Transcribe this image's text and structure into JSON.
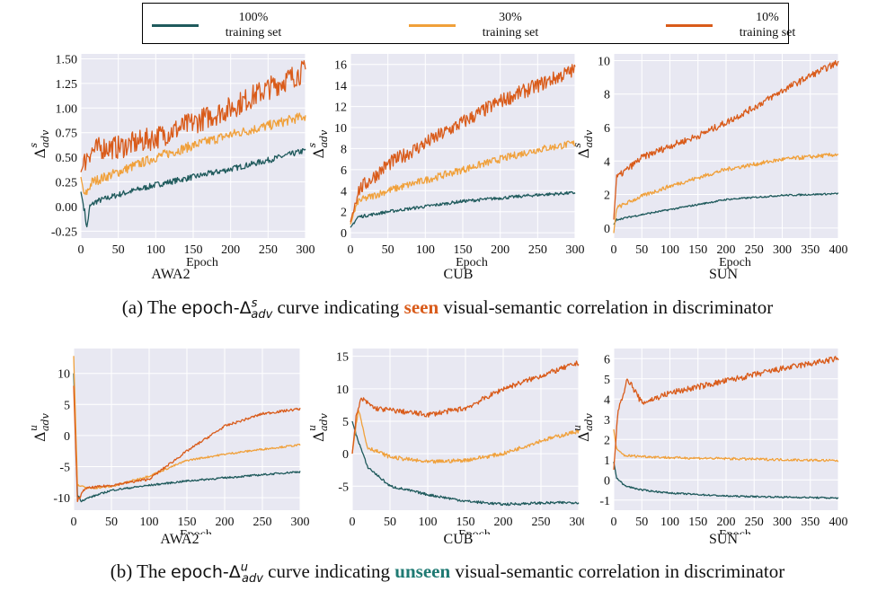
{
  "legend": {
    "items": [
      {
        "line1": "100%",
        "line2": "training set",
        "color": "#1f5a5c"
      },
      {
        "line1": "30%",
        "line2": "training set",
        "color": "#f0a03a"
      },
      {
        "line1": "10%",
        "line2": "training set",
        "color": "#d95b1a"
      }
    ]
  },
  "captions": {
    "a": {
      "prefix": "(a) The ",
      "term": "epoch-Δ",
      "sup": "s",
      "sub": "adv",
      "mid": " curve indicating ",
      "highlight": "seen",
      "suffix": " visual-semantic correlation in discriminator",
      "highlight_color": "#d95b1a"
    },
    "b": {
      "prefix": "(b) The ",
      "term": "epoch-Δ",
      "sup": "u",
      "sub": "adv",
      "mid": " curve indicating ",
      "highlight": "unseen",
      "suffix": " visual-semantic correlation in discriminator",
      "highlight_color": "#1f7a73"
    }
  },
  "chart_data": [
    {
      "type": "line",
      "id": "a1",
      "dataset": "AWA2",
      "xlabel": "Epoch",
      "ylabel_base": "Δ",
      "ylabel_sup": "s",
      "ylabel_sub": "adv",
      "xlim": [
        0,
        300
      ],
      "ylim": [
        -0.32,
        1.55
      ],
      "xticks": [
        0,
        50,
        100,
        150,
        200,
        250,
        300
      ],
      "yticks": [
        -0.25,
        0.0,
        0.25,
        0.5,
        0.75,
        1.0,
        1.25,
        1.5
      ],
      "ytick_labels": [
        "-0.25",
        "0.00",
        "0.25",
        "0.50",
        "0.75",
        "1.00",
        "1.25",
        "1.50"
      ],
      "grid": true,
      "series": [
        {
          "color": "#1f5a5c",
          "points": [
            [
              0,
              0.15
            ],
            [
              5,
              -0.05
            ],
            [
              8,
              -0.22
            ],
            [
              12,
              0.0
            ],
            [
              20,
              0.05
            ],
            [
              50,
              0.12
            ],
            [
              100,
              0.22
            ],
            [
              150,
              0.3
            ],
            [
              200,
              0.38
            ],
            [
              250,
              0.47
            ],
            [
              300,
              0.57
            ]
          ],
          "noise": 0.03
        },
        {
          "color": "#f0a03a",
          "points": [
            [
              0,
              0.3
            ],
            [
              5,
              0.1
            ],
            [
              15,
              0.25
            ],
            [
              50,
              0.35
            ],
            [
              100,
              0.5
            ],
            [
              150,
              0.62
            ],
            [
              200,
              0.73
            ],
            [
              250,
              0.82
            ],
            [
              300,
              0.92
            ]
          ],
          "noise": 0.05
        },
        {
          "color": "#d95b1a",
          "points": [
            [
              0,
              0.35
            ],
            [
              10,
              0.55
            ],
            [
              30,
              0.6
            ],
            [
              50,
              0.6
            ],
            [
              100,
              0.7
            ],
            [
              150,
              0.85
            ],
            [
              200,
              1.0
            ],
            [
              250,
              1.2
            ],
            [
              300,
              1.38
            ]
          ],
          "noise": 0.12
        }
      ]
    },
    {
      "type": "line",
      "id": "a2",
      "dataset": "CUB",
      "xlabel": "Epoch",
      "ylabel_base": "Δ",
      "ylabel_sup": "s",
      "ylabel_sub": "adv",
      "xlim": [
        0,
        300
      ],
      "ylim": [
        -0.5,
        17
      ],
      "xticks": [
        0,
        50,
        100,
        150,
        200,
        250,
        300
      ],
      "yticks": [
        0,
        2,
        4,
        6,
        8,
        10,
        12,
        14,
        16
      ],
      "ytick_labels": [
        "0",
        "2",
        "4",
        "6",
        "8",
        "10",
        "12",
        "14",
        "16"
      ],
      "grid": true,
      "series": [
        {
          "color": "#1f5a5c",
          "points": [
            [
              0,
              0.5
            ],
            [
              10,
              1.5
            ],
            [
              50,
              2.0
            ],
            [
              100,
              2.5
            ],
            [
              150,
              3.0
            ],
            [
              200,
              3.3
            ],
            [
              250,
              3.6
            ],
            [
              300,
              3.8
            ]
          ],
          "noise": 0.15
        },
        {
          "color": "#f0a03a",
          "points": [
            [
              0,
              0.8
            ],
            [
              10,
              3.0
            ],
            [
              50,
              4.0
            ],
            [
              100,
              5.0
            ],
            [
              150,
              6.0
            ],
            [
              200,
              7.0
            ],
            [
              250,
              7.9
            ],
            [
              300,
              8.5
            ]
          ],
          "noise": 0.35
        },
        {
          "color": "#d95b1a",
          "points": [
            [
              0,
              1.0
            ],
            [
              10,
              4.0
            ],
            [
              50,
              6.5
            ],
            [
              100,
              8.5
            ],
            [
              150,
              10.5
            ],
            [
              200,
              12.5
            ],
            [
              250,
              14.0
            ],
            [
              300,
              15.5
            ]
          ],
          "noise": 0.7
        }
      ]
    },
    {
      "type": "line",
      "id": "a3",
      "dataset": "SUN",
      "xlabel": "Epoch",
      "ylabel_base": "Δ",
      "ylabel_sup": "s",
      "ylabel_sub": "adv",
      "xlim": [
        0,
        400
      ],
      "ylim": [
        -0.6,
        10.4
      ],
      "xticks": [
        0,
        50,
        100,
        150,
        200,
        250,
        300,
        350,
        400
      ],
      "yticks": [
        0,
        2,
        4,
        6,
        8,
        10
      ],
      "ytick_labels": [
        "0",
        "2",
        "4",
        "6",
        "8",
        "10"
      ],
      "grid": true,
      "series": [
        {
          "color": "#1f5a5c",
          "points": [
            [
              0,
              0.2
            ],
            [
              5,
              0.5
            ],
            [
              50,
              0.8
            ],
            [
              100,
              1.1
            ],
            [
              150,
              1.4
            ],
            [
              200,
              1.7
            ],
            [
              300,
              1.95
            ],
            [
              400,
              2.05
            ]
          ],
          "noise": 0.05
        },
        {
          "color": "#f0a03a",
          "points": [
            [
              0,
              -0.3
            ],
            [
              5,
              1.2
            ],
            [
              50,
              1.9
            ],
            [
              100,
              2.5
            ],
            [
              150,
              3.0
            ],
            [
              200,
              3.5
            ],
            [
              300,
              4.1
            ],
            [
              400,
              4.4
            ]
          ],
          "noise": 0.12
        },
        {
          "color": "#d95b1a",
          "points": [
            [
              0,
              0.5
            ],
            [
              5,
              3.0
            ],
            [
              50,
              4.2
            ],
            [
              100,
              4.9
            ],
            [
              150,
              5.5
            ],
            [
              200,
              6.3
            ],
            [
              250,
              7.2
            ],
            [
              300,
              8.2
            ],
            [
              350,
              9.1
            ],
            [
              400,
              9.9
            ]
          ],
          "noise": 0.2
        }
      ]
    },
    {
      "type": "line",
      "id": "b1",
      "dataset": "AWA2",
      "xlabel": "Epoch",
      "ylabel_base": "Δ",
      "ylabel_sup": "u",
      "ylabel_sub": "adv",
      "xlim": [
        0,
        300
      ],
      "ylim": [
        -12,
        14
      ],
      "xticks": [
        0,
        50,
        100,
        150,
        200,
        250,
        300
      ],
      "yticks": [
        -10,
        -5,
        0,
        5,
        10
      ],
      "ytick_labels": [
        "-10",
        "-5",
        "0",
        "5",
        "10"
      ],
      "grid": true,
      "series": [
        {
          "color": "#1f5a5c",
          "points": [
            [
              0,
              10.0
            ],
            [
              5,
              -9.5
            ],
            [
              10,
              -10.5
            ],
            [
              20,
              -10.0
            ],
            [
              50,
              -8.8
            ],
            [
              100,
              -8.0
            ],
            [
              150,
              -7.3
            ],
            [
              200,
              -6.8
            ],
            [
              250,
              -6.3
            ],
            [
              300,
              -5.8
            ]
          ],
          "noise": 0.15
        },
        {
          "color": "#f0a03a",
          "points": [
            [
              0,
              12.8
            ],
            [
              5,
              -8.0
            ],
            [
              20,
              -8.5
            ],
            [
              50,
              -8.2
            ],
            [
              100,
              -6.5
            ],
            [
              150,
              -4.0
            ],
            [
              200,
              -3.0
            ],
            [
              250,
              -2.2
            ],
            [
              300,
              -1.5
            ]
          ],
          "noise": 0.15
        },
        {
          "color": "#d95b1a",
          "points": [
            [
              0,
              8.0
            ],
            [
              5,
              -10.5
            ],
            [
              15,
              -8.5
            ],
            [
              50,
              -8.0
            ],
            [
              100,
              -7.0
            ],
            [
              150,
              -2.5
            ],
            [
              200,
              1.5
            ],
            [
              250,
              3.5
            ],
            [
              300,
              4.3
            ]
          ],
          "noise": 0.2
        }
      ]
    },
    {
      "type": "line",
      "id": "b2",
      "dataset": "CUB",
      "xlabel": "Epoch",
      "ylabel_base": "Δ",
      "ylabel_sup": "u",
      "ylabel_sub": "adv",
      "xlim": [
        0,
        300
      ],
      "ylim": [
        -8.7,
        16.2
      ],
      "xticks": [
        0,
        50,
        100,
        150,
        200,
        250,
        300
      ],
      "yticks": [
        -5,
        0,
        5,
        10,
        15
      ],
      "ytick_labels": [
        "-5",
        "0",
        "5",
        "10",
        "15"
      ],
      "grid": true,
      "series": [
        {
          "color": "#1f5a5c",
          "points": [
            [
              0,
              5.0
            ],
            [
              5,
              3.0
            ],
            [
              20,
              -2.0
            ],
            [
              50,
              -5.0
            ],
            [
              100,
              -6.3
            ],
            [
              150,
              -7.3
            ],
            [
              200,
              -7.8
            ],
            [
              250,
              -7.6
            ],
            [
              300,
              -7.5
            ]
          ],
          "noise": 0.2
        },
        {
          "color": "#f0a03a",
          "points": [
            [
              0,
              0.0
            ],
            [
              8,
              7.0
            ],
            [
              20,
              1.0
            ],
            [
              50,
              -0.5
            ],
            [
              100,
              -1.3
            ],
            [
              150,
              -1.0
            ],
            [
              200,
              0.0
            ],
            [
              250,
              2.0
            ],
            [
              300,
              3.5
            ]
          ],
          "noise": 0.3
        },
        {
          "color": "#d95b1a",
          "points": [
            [
              0,
              0.0
            ],
            [
              5,
              5.5
            ],
            [
              12,
              8.5
            ],
            [
              30,
              7.0
            ],
            [
              100,
              6.0
            ],
            [
              150,
              7.0
            ],
            [
              200,
              10.0
            ],
            [
              250,
              12.0
            ],
            [
              300,
              14.0
            ]
          ],
          "noise": 0.4
        }
      ]
    },
    {
      "type": "line",
      "id": "b3",
      "dataset": "SUN",
      "xlabel": "Epoch",
      "ylabel_base": "Δ",
      "ylabel_sup": "u",
      "ylabel_sub": "adv",
      "xlim": [
        0,
        400
      ],
      "ylim": [
        -1.5,
        6.5
      ],
      "xticks": [
        0,
        50,
        100,
        150,
        200,
        250,
        300,
        350,
        400
      ],
      "yticks": [
        -1,
        0,
        1,
        2,
        3,
        4,
        5,
        6
      ],
      "ytick_labels": [
        "-1",
        "0",
        "1",
        "2",
        "3",
        "4",
        "5",
        "6"
      ],
      "grid": true,
      "series": [
        {
          "color": "#1f5a5c",
          "points": [
            [
              0,
              0.9
            ],
            [
              5,
              0.1
            ],
            [
              20,
              -0.3
            ],
            [
              50,
              -0.5
            ],
            [
              100,
              -0.65
            ],
            [
              200,
              -0.8
            ],
            [
              300,
              -0.85
            ],
            [
              400,
              -0.9
            ]
          ],
          "noise": 0.04
        },
        {
          "color": "#f0a03a",
          "points": [
            [
              0,
              2.5
            ],
            [
              5,
              1.5
            ],
            [
              20,
              1.2
            ],
            [
              100,
              1.1
            ],
            [
              200,
              1.05
            ],
            [
              300,
              1.0
            ],
            [
              400,
              0.95
            ]
          ],
          "noise": 0.06
        },
        {
          "color": "#d95b1a",
          "points": [
            [
              0,
              0.5
            ],
            [
              8,
              3.5
            ],
            [
              25,
              5.0
            ],
            [
              50,
              3.8
            ],
            [
              100,
              4.3
            ],
            [
              200,
              4.9
            ],
            [
              300,
              5.5
            ],
            [
              400,
              6.0
            ]
          ],
          "noise": 0.15
        }
      ]
    }
  ]
}
